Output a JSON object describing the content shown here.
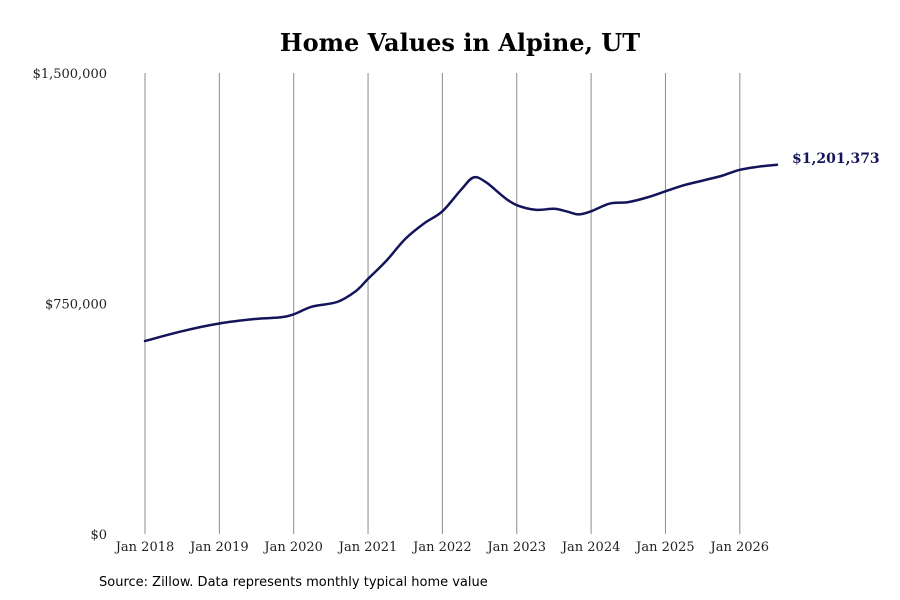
{
  "chart_data": {
    "type": "line",
    "title": "Home Values in Alpine, UT",
    "xlabel": "",
    "ylabel": "",
    "ylim": [
      0,
      1500000
    ],
    "y_ticks": [
      0,
      750000,
      1500000
    ],
    "y_tick_labels": [
      "$0",
      "$750,000",
      "$1,500,000"
    ],
    "x_ticks": [
      "2018-01",
      "2019-01",
      "2020-01",
      "2021-01",
      "2022-01",
      "2023-01",
      "2024-01",
      "2025-01",
      "2026-01"
    ],
    "x_tick_labels": [
      "Jan 2018",
      "Jan 2019",
      "Jan 2020",
      "Jan 2021",
      "Jan 2022",
      "Jan 2023",
      "Jan 2024",
      "Jan 2025",
      "Jan 2026"
    ],
    "grid": "vertical",
    "line_color": "#14145a",
    "end_label": "$1,201,373",
    "series": [
      {
        "x": [
          "2018-01",
          "2018-07",
          "2019-01",
          "2019-07",
          "2019-11",
          "2020-01",
          "2020-04",
          "2020-08",
          "2020-11",
          "2021-01",
          "2021-04",
          "2021-07",
          "2021-10",
          "2022-01",
          "2022-04",
          "2022-06",
          "2022-08",
          "2022-11",
          "2023-01",
          "2023-04",
          "2023-07",
          "2023-09",
          "2023-11",
          "2024-01",
          "2024-04",
          "2024-07",
          "2024-10",
          "2025-01",
          "2025-04",
          "2025-07",
          "2025-10",
          "2026-01",
          "2026-04",
          "2026-07"
        ],
        "values": [
          628000,
          660000,
          685000,
          700000,
          705000,
          715000,
          740000,
          755000,
          790000,
          830000,
          890000,
          960000,
          1010000,
          1050000,
          1120000,
          1160000,
          1145000,
          1095000,
          1070000,
          1055000,
          1058000,
          1050000,
          1040000,
          1050000,
          1075000,
          1080000,
          1095000,
          1115000,
          1135000,
          1150000,
          1165000,
          1185000,
          1195000,
          1201373
        ]
      }
    ]
  },
  "source_note": "Source: Zillow. Data represents monthly typical home value"
}
